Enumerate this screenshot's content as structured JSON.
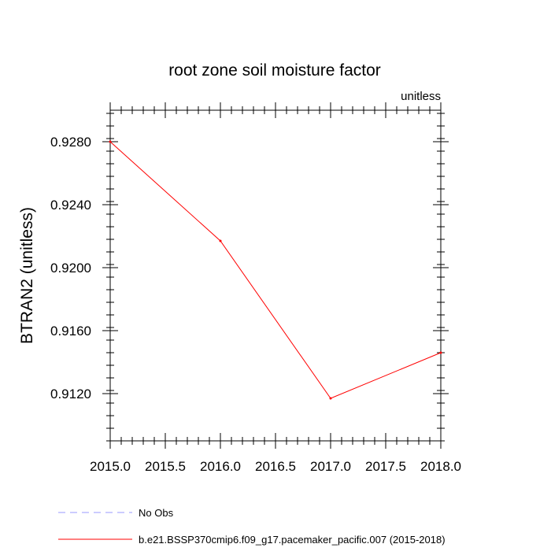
{
  "chart_data": {
    "type": "line",
    "title": "root zone soil moisture factor",
    "units_label": "unitless",
    "ylabel": "BTRAN2  (unitless)",
    "xlabel": "",
    "x": [
      2015,
      2016,
      2017,
      2018
    ],
    "series": [
      {
        "name": "b.e21.BSSP370cmip6.f09_g17.pacemaker_pacific.007 (2015-2018)",
        "values": [
          0.928,
          0.9217,
          0.9117,
          0.9146
        ],
        "color": "#ff0000",
        "style": "solid"
      }
    ],
    "legend": {
      "placement": "bottom-left",
      "entries": [
        {
          "label": "No Obs",
          "color": "#9999ff",
          "style": "dashed"
        },
        {
          "label": "b.e21.BSSP370cmip6.f09_g17.pacemaker_pacific.007 (2015-2018)",
          "color": "#ff0000",
          "style": "solid"
        }
      ]
    },
    "xlim": [
      2015.0,
      2018.0
    ],
    "ylim": [
      0.909,
      0.93
    ],
    "xticks": [
      2015.0,
      2015.5,
      2016.0,
      2016.5,
      2017.0,
      2017.5,
      2018.0
    ],
    "xtick_labels": [
      "2015.0",
      "2015.5",
      "2016.0",
      "2016.5",
      "2017.0",
      "2017.5",
      "2018.0"
    ],
    "xminor_step": 0.1,
    "yticks": [
      0.912,
      0.916,
      0.92,
      0.924,
      0.928
    ],
    "ytick_labels": [
      "0.9120",
      "0.9160",
      "0.9200",
      "0.9240",
      "0.9280"
    ],
    "yminor_step": 0.0008,
    "grid": false
  }
}
